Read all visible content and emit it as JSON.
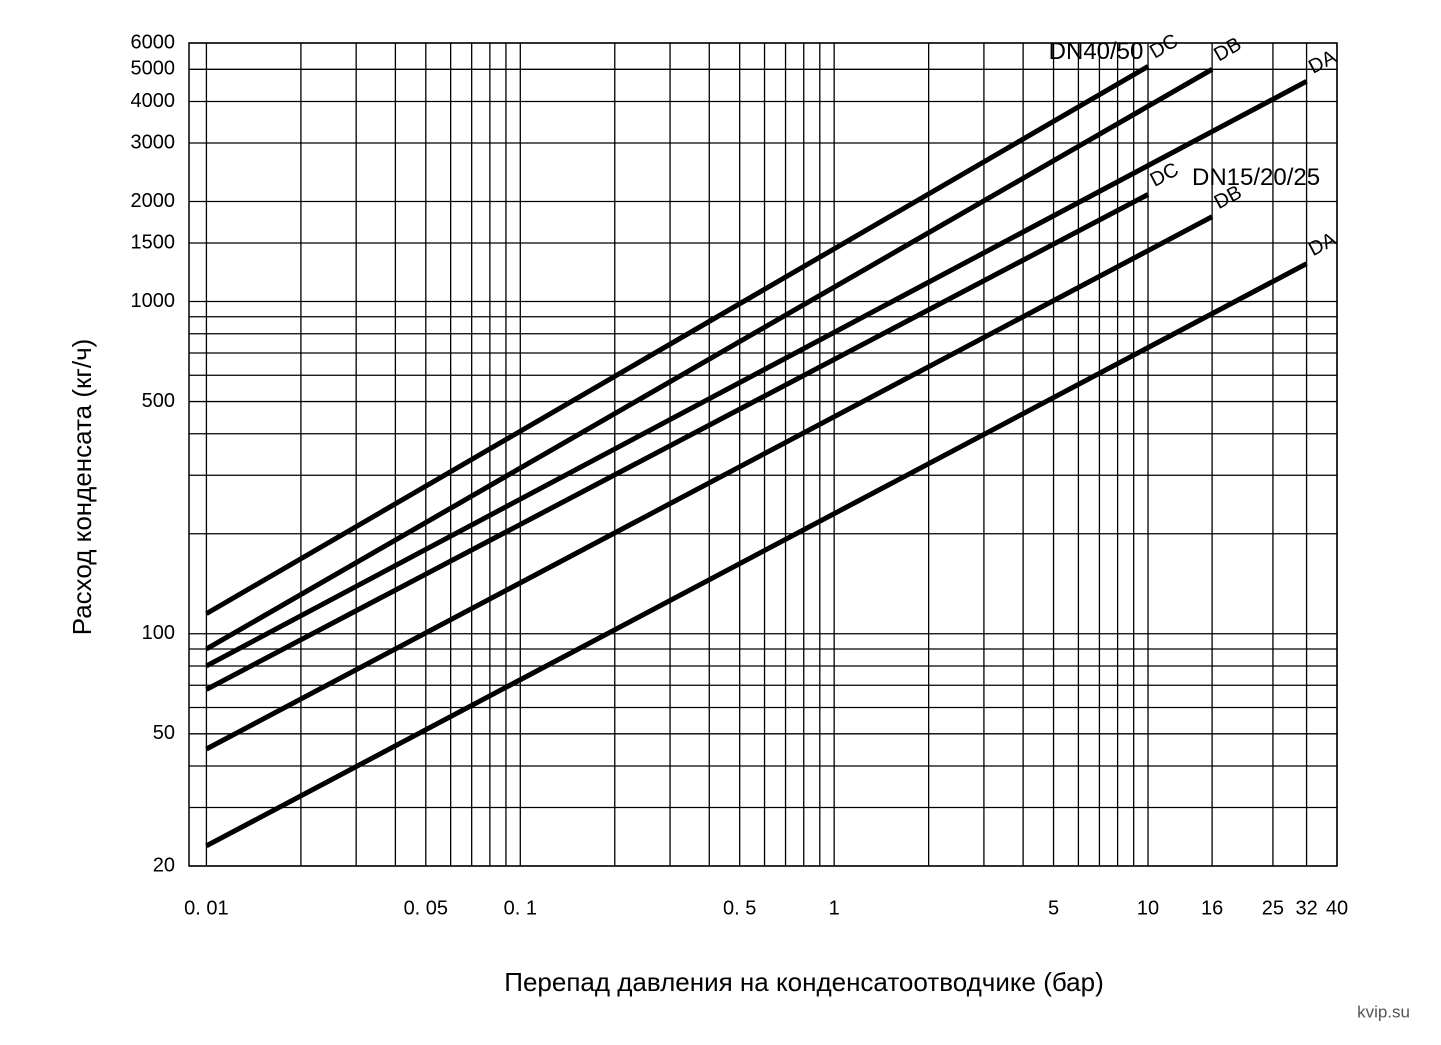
{
  "chart_data": {
    "type": "line",
    "x_label": "Перепад давления на конденсатоотводчике (бар)",
    "y_label": "Расход конденсата (кг/ч)",
    "x_log": true,
    "y_log": true,
    "grid": true,
    "xlim": [
      0.0088,
      40
    ],
    "ylim": [
      20,
      6000
    ],
    "xticks": [
      {
        "value": 0.01,
        "label": "0. 01"
      },
      {
        "value": 0.05,
        "label": "0. 05"
      },
      {
        "value": 0.1,
        "label": "0. 1"
      },
      {
        "value": 0.5,
        "label": "0. 5"
      },
      1,
      5,
      10,
      16,
      25,
      32,
      40
    ],
    "yticks": [
      20,
      50,
      100,
      500,
      1000,
      1500,
      2000,
      3000,
      4000,
      5000,
      6000
    ],
    "x_minor_grid": [
      0.02,
      0.03,
      0.04,
      0.06,
      0.07,
      0.08,
      0.09,
      0.2,
      0.3,
      0.4,
      0.6,
      0.7,
      0.8,
      0.9,
      2,
      3,
      4,
      6,
      7,
      8,
      9
    ],
    "y_minor_grid": [
      30,
      40,
      60,
      70,
      80,
      90,
      200,
      300,
      400,
      600,
      700,
      800,
      900
    ],
    "annotations": [
      "DN40/50",
      "DN15/20/25"
    ],
    "series": [
      {
        "name": "DC",
        "color": "#000000",
        "x": [
          0.01,
          10
        ],
        "values": [
          115,
          5100
        ]
      },
      {
        "name": "DB",
        "color": "#000000",
        "x": [
          0.01,
          16
        ],
        "values": [
          90,
          5000
        ]
      },
      {
        "name": "DA",
        "color": "#000000",
        "x": [
          0.01,
          32
        ],
        "values": [
          80,
          4600
        ]
      },
      {
        "name": "DC",
        "color": "#000000",
        "x": [
          0.01,
          10
        ],
        "values": [
          68,
          2100
        ]
      },
      {
        "name": "DB",
        "color": "#000000",
        "x": [
          0.01,
          16
        ],
        "values": [
          45,
          1800
        ]
      },
      {
        "name": "DA",
        "color": "#000000",
        "x": [
          0.01,
          32
        ],
        "values": [
          23,
          1300
        ]
      }
    ],
    "source": "kvip.su"
  }
}
